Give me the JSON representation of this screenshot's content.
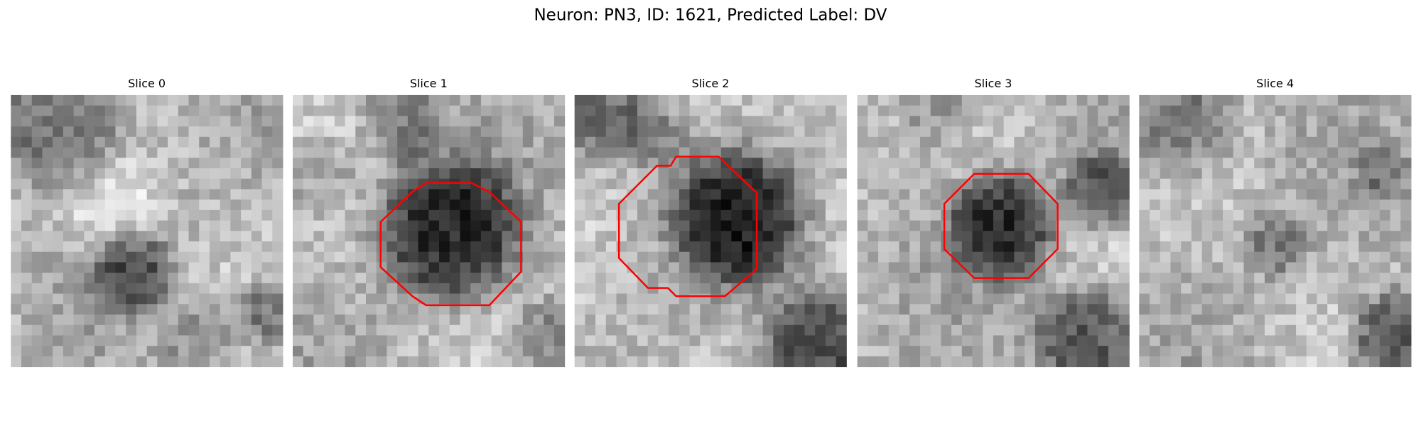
{
  "title": "Neuron: PN3, ID: 1621, Predicted Label: DV",
  "panels": [
    {
      "title": "Slice 0"
    },
    {
      "title": "Slice 1"
    },
    {
      "title": "Slice 2"
    },
    {
      "title": "Slice 3"
    },
    {
      "title": "Slice 4"
    }
  ]
}
